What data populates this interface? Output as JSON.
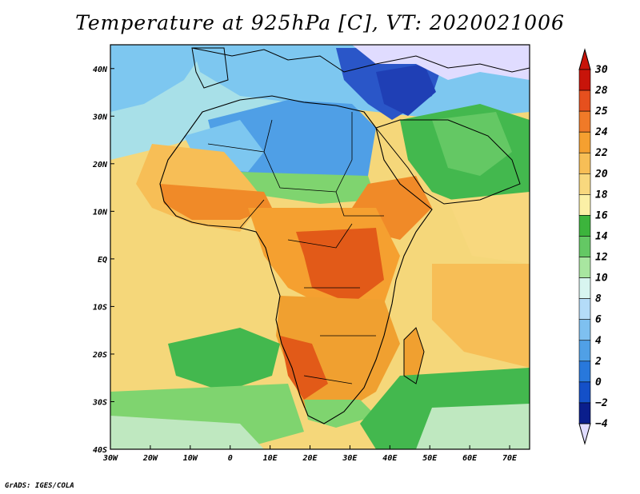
{
  "title": "Temperature at 925hPa [C], VT: 2020021006",
  "credit": "GrADS: IGES/COLA",
  "map": {
    "lon_range": [
      -30,
      75
    ],
    "lat_range": [
      -40,
      45
    ],
    "lon_ticks": [
      {
        "value": -30,
        "label": "30W"
      },
      {
        "value": -20,
        "label": "20W"
      },
      {
        "value": -10,
        "label": "10W"
      },
      {
        "value": 0,
        "label": "0"
      },
      {
        "value": 10,
        "label": "10E"
      },
      {
        "value": 20,
        "label": "20E"
      },
      {
        "value": 30,
        "label": "30E"
      },
      {
        "value": 40,
        "label": "40E"
      },
      {
        "value": 50,
        "label": "50E"
      },
      {
        "value": 60,
        "label": "60E"
      },
      {
        "value": 70,
        "label": "70E"
      }
    ],
    "lat_ticks": [
      {
        "value": 40,
        "label": "40N"
      },
      {
        "value": 30,
        "label": "30N"
      },
      {
        "value": 20,
        "label": "20N"
      },
      {
        "value": 10,
        "label": "10N"
      },
      {
        "value": 0,
        "label": "EQ"
      },
      {
        "value": -10,
        "label": "10S"
      },
      {
        "value": -20,
        "label": "20S"
      },
      {
        "value": -30,
        "label": "30S"
      },
      {
        "value": -40,
        "label": "40S"
      }
    ],
    "colors": {
      "ocean_default": "#f5d77a",
      "sea_mid": "#bfe8c0",
      "sea_north": "#7dc7f0",
      "sea_cool": "#43b84e",
      "sahara": "#4f9fe6",
      "east_med": "#1f3fb5",
      "levant_cold": "#e0dcff",
      "sahel_hot": "#f08a28",
      "congo_hot": "#e25a18",
      "south_africa": "#f0a030",
      "southern_green": "#7fd46f",
      "border": "#000000"
    }
  },
  "colorbar": {
    "levels": [
      30,
      28,
      25,
      24,
      22,
      20,
      18,
      16,
      14,
      12,
      10,
      8,
      6,
      4,
      2,
      0,
      -2,
      -4
    ],
    "colors": [
      "#c8140a",
      "#e6501e",
      "#f07a28",
      "#f5a030",
      "#f7be56",
      "#f8d87e",
      "#fbf0a6",
      "#3cb43c",
      "#64c864",
      "#a8e6a0",
      "#d8f5f0",
      "#b4dcf8",
      "#7ec0f0",
      "#50a0e6",
      "#2878dc",
      "#1450c8",
      "#0a1e8c"
    ],
    "over_color": "#c8140a",
    "under_color": "#e0dcff"
  }
}
